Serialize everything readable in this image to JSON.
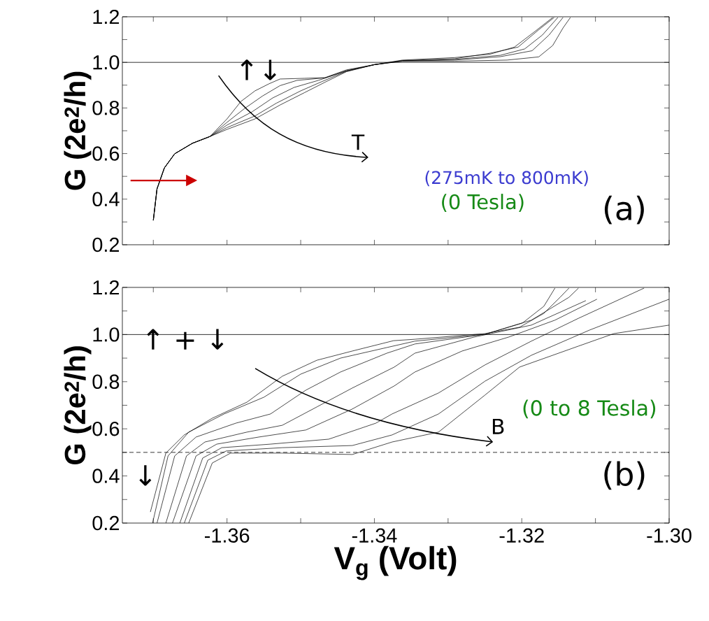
{
  "chart_data": [
    {
      "type": "line",
      "ylabel": "G (2e$^{2}$/h)",
      "tick_labels": "y",
      "xlim": [
        -1.3742,
        -1.3
      ],
      "ylim": [
        0.2,
        1.2
      ],
      "xticks": [
        {
          "value": -1.37,
          "label": null
        },
        {
          "value": -1.36,
          "label": null
        },
        {
          "value": -1.35,
          "label": null
        },
        {
          "value": -1.34,
          "label": null
        },
        {
          "value": -1.33,
          "label": null
        },
        {
          "value": -1.32,
          "label": null
        },
        {
          "value": -1.31,
          "label": null
        },
        {
          "value": -1.3,
          "label": null
        }
      ],
      "yticks": [
        0.2,
        {
          "value": 0.3,
          "label": null
        },
        0.4,
        {
          "value": 0.5,
          "label": null
        },
        0.6,
        {
          "value": 0.7,
          "label": null
        },
        0.8,
        {
          "value": 0.9,
          "label": null
        },
        {
          "value": 1.0,
          "label": "1.0"
        },
        {
          "value": 1.1,
          "label": null
        },
        1.2
      ],
      "ref_lines": [
        {
          "axis": "y",
          "value": 1.0,
          "line_style": "solid"
        }
      ],
      "annotations": [
        "↑↓",
        "T",
        "(275mK to 800mK)",
        "(0 Tesla)",
        "(a)"
      ],
      "series": [
        {
          "color": "#000000",
          "x": [
            -1.37,
            -1.3695,
            -1.3685,
            -1.3671,
            -1.3647,
            -1.3623,
            -1.36,
            -1.3581,
            -1.3562,
            -1.3543,
            -1.3528,
            -1.3495,
            -1.3467,
            -1.3438,
            -1.34,
            -1.3362,
            -1.3291,
            -1.322,
            -1.3177,
            -1.3158,
            -1.3144,
            -1.3134
          ],
          "values": [
            0.307,
            0.445,
            0.537,
            0.599,
            0.645,
            0.675,
            0.752,
            0.829,
            0.875,
            0.906,
            0.927,
            0.93,
            0.933,
            0.967,
            0.99,
            1.005,
            1.005,
            1.01,
            1.024,
            1.074,
            1.151,
            1.197
          ]
        },
        {
          "color": "#000000",
          "x": [
            -1.37,
            -1.3695,
            -1.3685,
            -1.3671,
            -1.3647,
            -1.3623,
            -1.36,
            -1.3576,
            -1.3552,
            -1.3528,
            -1.3505,
            -1.3467,
            -1.3438,
            -1.34,
            -1.3362,
            -1.3291,
            -1.3229,
            -1.3186,
            -1.3163,
            -1.3144
          ],
          "values": [
            0.307,
            0.445,
            0.537,
            0.599,
            0.645,
            0.675,
            0.737,
            0.798,
            0.852,
            0.898,
            0.921,
            0.932,
            0.964,
            0.99,
            1.006,
            1.01,
            1.025,
            1.051,
            1.12,
            1.197
          ]
        },
        {
          "color": "#000000",
          "x": [
            -1.37,
            -1.3695,
            -1.3685,
            -1.3671,
            -1.3647,
            -1.3623,
            -1.36,
            -1.3566,
            -1.3538,
            -1.3509,
            -1.3476,
            -1.3438,
            -1.34,
            -1.3362,
            -1.3291,
            -1.3229,
            -1.3196,
            -1.3172,
            -1.3151
          ],
          "values": [
            0.307,
            0.445,
            0.537,
            0.599,
            0.645,
            0.675,
            0.725,
            0.783,
            0.844,
            0.89,
            0.921,
            0.962,
            0.99,
            1.007,
            1.013,
            1.031,
            1.059,
            1.12,
            1.197
          ]
        },
        {
          "color": "#000000",
          "x": [
            -1.37,
            -1.3695,
            -1.3685,
            -1.3671,
            -1.3647,
            -1.3623,
            -1.36,
            -1.3562,
            -1.3533,
            -1.35,
            -1.3471,
            -1.3438,
            -1.34,
            -1.3362,
            -1.3291,
            -1.3243,
            -1.3205,
            -1.3177,
            -1.3156
          ],
          "values": [
            0.307,
            0.445,
            0.537,
            0.599,
            0.645,
            0.675,
            0.714,
            0.765,
            0.821,
            0.875,
            0.916,
            0.961,
            0.99,
            1.008,
            1.016,
            1.04,
            1.067,
            1.143,
            1.197
          ]
        },
        {
          "color": "#000000",
          "x": [
            -1.37,
            -1.3695,
            -1.3685,
            -1.3671,
            -1.3647,
            -1.3623,
            -1.36,
            -1.3562,
            -1.3528,
            -1.3495,
            -1.3467,
            -1.3438,
            -1.34,
            -1.3362,
            -1.3291,
            -1.3243,
            -1.321,
            -1.3182,
            -1.3158
          ],
          "values": [
            0.307,
            0.445,
            0.537,
            0.599,
            0.645,
            0.675,
            0.706,
            0.752,
            0.813,
            0.867,
            0.913,
            0.959,
            0.99,
            1.01,
            1.021,
            1.036,
            1.067,
            1.136,
            1.197
          ]
        }
      ]
    },
    {
      "type": "line",
      "ylabel": "G (2e$^{2}$/h)",
      "xlabel": "V$_{g}$ (Volt)",
      "xlim": [
        -1.3742,
        -1.3
      ],
      "ylim": [
        0.2,
        1.2
      ],
      "xticks": [
        {
          "value": -1.37,
          "label": null
        },
        -1.36,
        {
          "value": -1.35,
          "label": null
        },
        -1.34,
        {
          "value": -1.33,
          "label": null
        },
        -1.32,
        {
          "value": -1.31,
          "label": null
        },
        {
          "value": -1.3,
          "label": "-1.30"
        }
      ],
      "yticks": [
        0.2,
        {
          "value": 0.3,
          "label": null
        },
        0.4,
        {
          "value": 0.5,
          "label": null
        },
        0.6,
        {
          "value": 0.7,
          "label": null
        },
        0.8,
        {
          "value": 0.9,
          "label": null
        },
        {
          "value": 1.0,
          "label": "1.0"
        },
        {
          "value": 1.1,
          "label": null
        },
        1.2
      ],
      "ref_lines": [
        {
          "axis": "y",
          "value": 1.0,
          "line_style": "solid"
        },
        {
          "axis": "y",
          "value": 0.5,
          "line_style": "dashed"
        }
      ],
      "annotations": [
        "↑ + ↓",
        "↓",
        "B",
        "(0 to 8 Tesla)",
        "(b)"
      ],
      "series": [
        {
          "color": "#000000",
          "x": [
            -1.3704,
            -1.3683,
            -1.3658,
            -1.362,
            -1.3573,
            -1.3525,
            -1.3478,
            -1.343,
            -1.3374,
            -1.3345,
            -1.325,
            -1.3203,
            -1.317,
            -1.3148,
            -1.3136
          ],
          "values": [
            0.247,
            0.497,
            0.574,
            0.645,
            0.713,
            0.823,
            0.891,
            0.93,
            0.974,
            0.98,
            1.004,
            1.031,
            1.09,
            1.158,
            1.197
          ]
        },
        {
          "color": "#000000",
          "x": [
            -1.3701,
            -1.368,
            -1.3652,
            -1.3604,
            -1.355,
            -1.35,
            -1.3446,
            -1.3383,
            -1.3345,
            -1.325,
            -1.3199,
            -1.317,
            -1.3155
          ],
          "values": [
            0.2,
            0.485,
            0.586,
            0.663,
            0.734,
            0.832,
            0.9,
            0.945,
            0.972,
            1.001,
            1.049,
            1.12,
            1.197
          ]
        },
        {
          "color": "#000000",
          "x": [
            -1.3695,
            -1.3671,
            -1.3642,
            -1.3588,
            -1.3541,
            -1.3493,
            -1.3446,
            -1.3383,
            -1.3345,
            -1.325,
            -1.3187,
            -1.3136,
            -1.3123
          ],
          "values": [
            0.2,
            0.485,
            0.565,
            0.624,
            0.663,
            0.764,
            0.841,
            0.921,
            0.96,
            1.001,
            1.061,
            1.158,
            1.197
          ]
        },
        {
          "color": "#000000",
          "x": [
            -1.3683,
            -1.3655,
            -1.363,
            -1.3573,
            -1.3525,
            -1.3478,
            -1.343,
            -1.3373,
            -1.3345,
            -1.3265,
            -1.3187,
            -1.3113
          ],
          "values": [
            0.2,
            0.485,
            0.544,
            0.586,
            0.615,
            0.693,
            0.773,
            0.862,
            0.921,
            0.989,
            1.04,
            1.144
          ]
        },
        {
          "color": "#000000",
          "x": [
            -1.3674,
            -1.3642,
            -1.3614,
            -1.3557,
            -1.3493,
            -1.343,
            -1.3373,
            -1.3345,
            -1.3281,
            -1.3218,
            -1.3155,
            -1.3098
          ],
          "values": [
            0.2,
            0.485,
            0.535,
            0.565,
            0.595,
            0.684,
            0.782,
            0.841,
            0.93,
            0.989,
            1.061,
            1.15
          ]
        },
        {
          "color": "#000000",
          "x": [
            -1.3664,
            -1.3633,
            -1.3607,
            -1.3541,
            -1.3462,
            -1.3398,
            -1.3376,
            -1.3313,
            -1.325,
            -1.3187,
            -1.3123,
            -1.3034
          ],
          "values": [
            0.2,
            0.476,
            0.52,
            0.535,
            0.556,
            0.624,
            0.663,
            0.752,
            0.871,
            0.972,
            1.069,
            1.197
          ]
        },
        {
          "color": "#000000",
          "x": [
            -1.3658,
            -1.3626,
            -1.3601,
            -1.3525,
            -1.343,
            -1.3376,
            -1.3313,
            -1.325,
            -1.3187,
            -1.3108,
            -1.3
          ],
          "values": [
            0.2,
            0.467,
            0.506,
            0.52,
            0.529,
            0.574,
            0.663,
            0.802,
            0.912,
            1.019,
            1.15
          ]
        },
        {
          "color": "#000000",
          "x": [
            -1.3652,
            -1.362,
            -1.3595,
            -1.3525,
            -1.343,
            -1.3376,
            -1.3313,
            -1.325,
            -1.3203,
            -1.3123,
            -1.3075,
            -1.3
          ],
          "values": [
            0.2,
            0.455,
            0.497,
            0.497,
            0.491,
            0.544,
            0.586,
            0.743,
            0.862,
            0.951,
            1.004,
            1.04
          ]
        }
      ]
    }
  ]
}
